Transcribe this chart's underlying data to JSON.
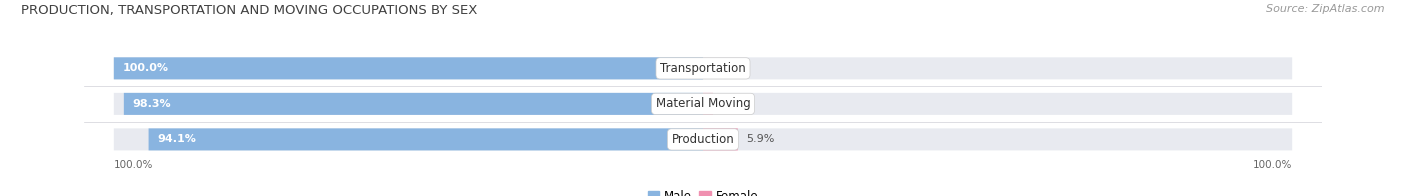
{
  "title": "PRODUCTION, TRANSPORTATION AND MOVING OCCUPATIONS BY SEX",
  "source": "Source: ZipAtlas.com",
  "categories": [
    "Transportation",
    "Material Moving",
    "Production"
  ],
  "male_values": [
    100.0,
    98.3,
    94.1
  ],
  "female_values": [
    0.0,
    1.7,
    5.9
  ],
  "male_color": "#89b4e0",
  "female_color": "#f090b0",
  "bar_bg_color": "#e8eaf0",
  "background_color": "#ffffff",
  "title_fontsize": 9.5,
  "source_fontsize": 8,
  "label_fontsize": 8,
  "cat_fontsize": 8.5,
  "tick_fontsize": 7.5,
  "bar_height": 0.62,
  "xlim": 105,
  "bar_total": 100,
  "axis_label": "100.0%"
}
